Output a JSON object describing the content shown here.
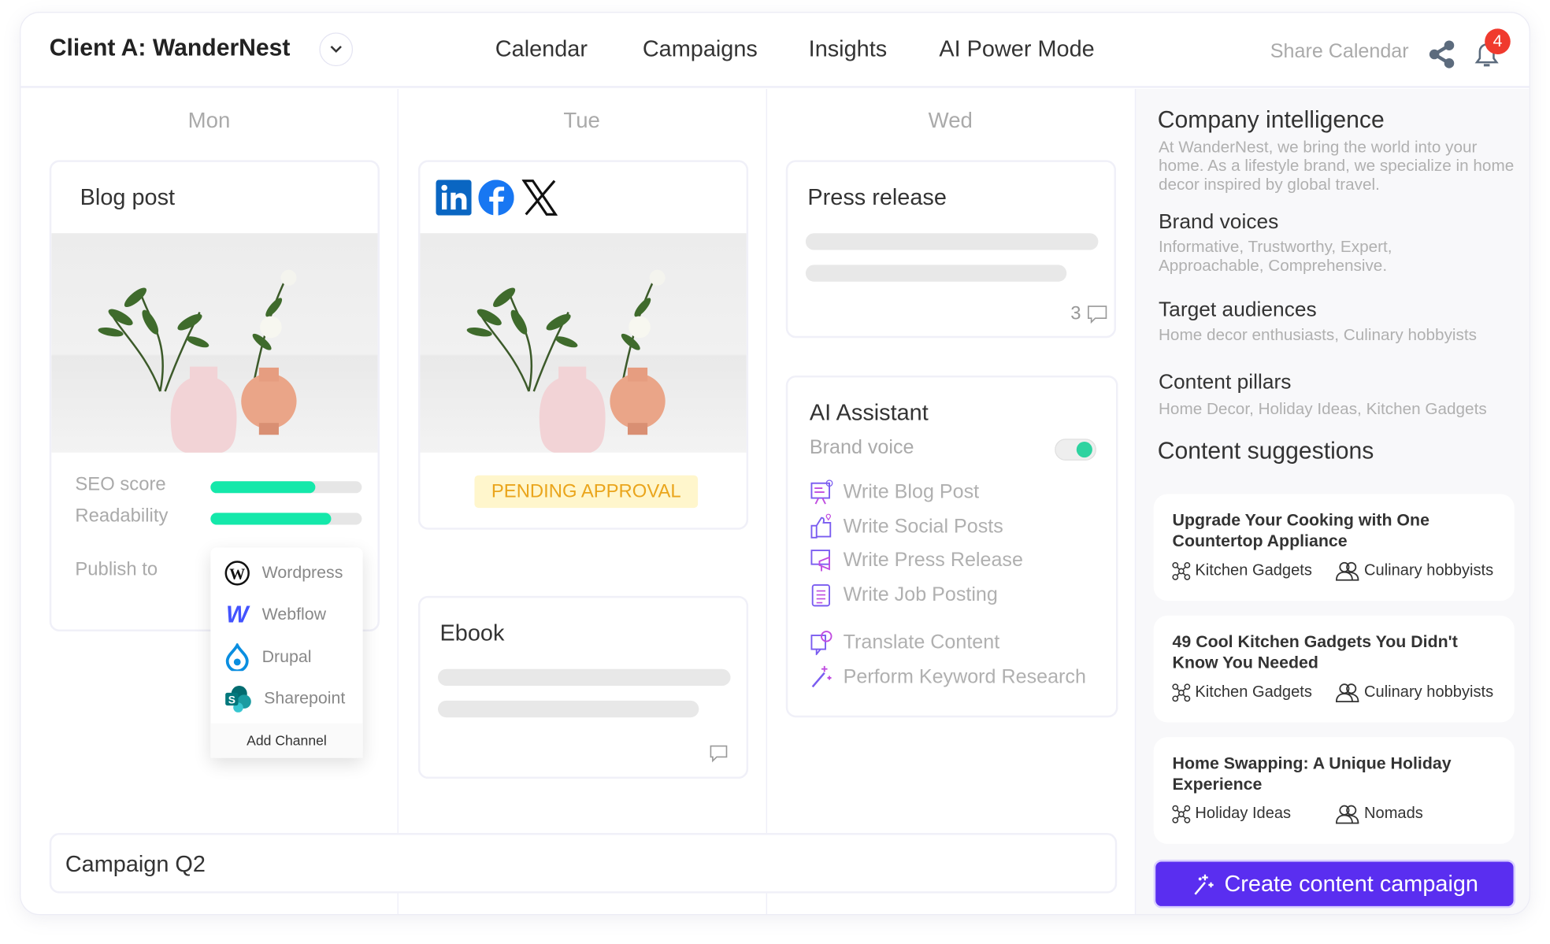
{
  "header": {
    "title": "Client A: WanderNest",
    "nav": [
      "Calendar",
      "Campaigns",
      "Insights",
      "AI Power Mode"
    ],
    "share_label": "Share Calendar",
    "notification_count": "4"
  },
  "days": [
    "Mon",
    "Tue",
    "Wed"
  ],
  "blog_card": {
    "title": "Blog post",
    "seo_label": "SEO score",
    "seo_value": 0.69,
    "readability_label": "Readability",
    "readability_value": 0.8,
    "publish_label": "Publish to"
  },
  "publish_menu": {
    "items": [
      {
        "label": "Wordpress",
        "icon": "wordpress-icon"
      },
      {
        "label": "Webflow",
        "icon": "webflow-icon"
      },
      {
        "label": "Drupal",
        "icon": "drupal-icon"
      },
      {
        "label": "Sharepoint",
        "icon": "sharepoint-icon"
      }
    ],
    "add_label": "Add Channel"
  },
  "social_card": {
    "icons": [
      "linkedin-icon",
      "facebook-icon",
      "x-icon"
    ],
    "status": "PENDING APPROVAL"
  },
  "ebook_card": {
    "title": "Ebook"
  },
  "press_card": {
    "title": "Press release",
    "comment_count": "3"
  },
  "ai_assistant": {
    "title": "AI Assistant",
    "brand_voice_label": "Brand voice",
    "brand_voice_on": true,
    "actions": [
      "Write Blog Post",
      "Write Social Posts",
      "Write Press Release",
      "Write Job Posting",
      "Translate Content",
      "Perform Keyword Research"
    ]
  },
  "campaign": {
    "title": "Campaign Q2"
  },
  "intelligence": {
    "title": "Company intelligence",
    "description": "At WanderNest, we bring the world into your home. As a lifestyle brand, we specialize in home decor inspired by global travel.",
    "brand_voices_label": "Brand voices",
    "brand_voices": "Informative, Trustworthy, Expert, Approachable, Comprehensive.",
    "audiences_label": "Target audiences",
    "audiences": "Home decor enthusiasts, Culinary hobbyists",
    "pillars_label": "Content pillars",
    "pillars": "Home Decor, Holiday Ideas, Kitchen Gadgets",
    "suggestions_label": "Content suggestions",
    "suggestions": [
      {
        "title": "Upgrade Your Cooking with One Countertop Appliance",
        "pillar": "Kitchen Gadgets",
        "audience": "Culinary hobbyists"
      },
      {
        "title": "49 Cool Kitchen Gadgets You Didn't Know You Needed",
        "pillar": "Kitchen Gadgets",
        "audience": "Culinary hobbyists"
      },
      {
        "title": "Home Swapping: A Unique Holiday Experience",
        "pillar": "Holiday Ideas",
        "audience": "Nomads"
      }
    ],
    "cta_label": "Create content campaign"
  },
  "colors": {
    "accent": "#5a2ef0",
    "progress": "#14e8aa",
    "pending_bg": "#fff6cc",
    "pending_text": "#eaa51c",
    "badge": "#f03a2e"
  }
}
